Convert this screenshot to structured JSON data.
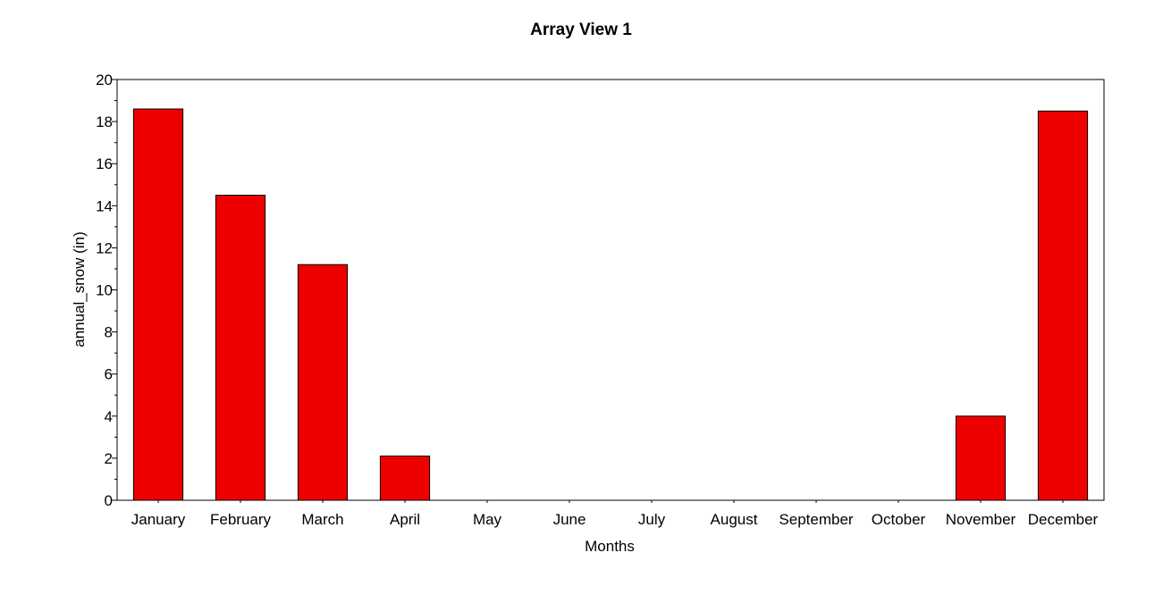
{
  "chart_data": {
    "type": "bar",
    "title": "Array View 1",
    "xlabel": "Months",
    "ylabel": "annual_snow (in)",
    "categories": [
      "January",
      "February",
      "March",
      "April",
      "May",
      "June",
      "July",
      "August",
      "September",
      "October",
      "November",
      "December"
    ],
    "values": [
      18.6,
      14.5,
      11.2,
      2.1,
      0,
      0,
      0,
      0,
      0,
      0,
      4.0,
      18.5
    ],
    "ylim": [
      0,
      20
    ],
    "yticks": [
      0,
      2,
      4,
      6,
      8,
      10,
      12,
      14,
      16,
      18,
      20
    ],
    "grid": false,
    "colors": {
      "bar": "#ee0000",
      "bar_edge": "#000000"
    }
  }
}
